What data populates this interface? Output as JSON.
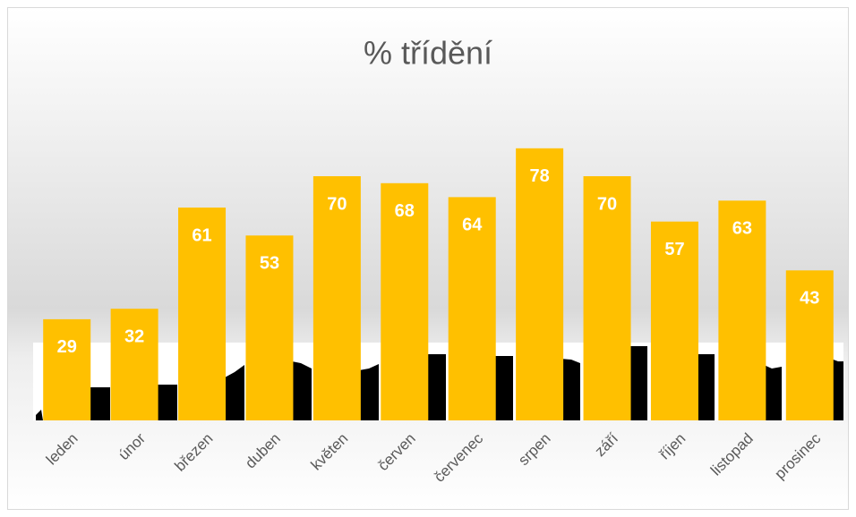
{
  "chart_data": {
    "type": "bar",
    "title": "% třídění",
    "categories": [
      "leden",
      "únor",
      "březen",
      "duben",
      "květen",
      "červen",
      "červenec",
      "srpen",
      "září",
      "říjen",
      "listopad",
      "prosinec"
    ],
    "values": [
      29,
      32,
      61,
      53,
      70,
      68,
      64,
      78,
      70,
      57,
      63,
      43
    ],
    "color": "#ffc000"
  }
}
